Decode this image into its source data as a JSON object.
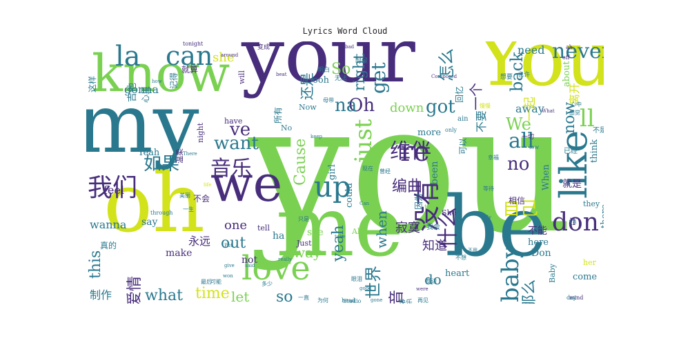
{
  "title": "Lyrics Word Cloud",
  "colors": {
    "dark_purple": "#472d7b",
    "teal": "#2a788e",
    "green": "#7ad151",
    "yellow": "#d2e21b",
    "blue": "#3b528b",
    "sea": "#22a884"
  },
  "words": [
    {
      "text": "you",
      "color": "#7ad151",
      "size": 260,
      "rotate": false
    },
    {
      "text": "your",
      "color": "#472d7b",
      "size": 110,
      "rotate": false
    },
    {
      "text": "my",
      "color": "#2a788e",
      "size": 118,
      "rotate": false
    },
    {
      "text": "You",
      "color": "#d2e21b",
      "size": 110,
      "rotate": false
    },
    {
      "text": "know",
      "color": "#7ad151",
      "size": 74,
      "rotate": false
    },
    {
      "text": "oh",
      "color": "#d2e21b",
      "size": 118,
      "rotate": false
    },
    {
      "text": "me",
      "color": "#7ad151",
      "size": 120,
      "rotate": false
    },
    {
      "text": "be",
      "color": "#2a788e",
      "size": 120,
      "rotate": false
    },
    {
      "text": "we",
      "color": "#472d7b",
      "size": 72,
      "rotate": false
    },
    {
      "text": "like",
      "color": "#2a788e",
      "size": 54,
      "rotate": true
    },
    {
      "text": "love",
      "color": "#7ad151",
      "size": 48,
      "rotate": false
    },
    {
      "text": "can",
      "color": "#2a788e",
      "size": 38,
      "rotate": false
    },
    {
      "text": "la",
      "color": "#2a788e",
      "size": 40,
      "rotate": false
    },
    {
      "text": "re",
      "color": "#472d7b",
      "size": 40,
      "rotate": false
    },
    {
      "text": "up",
      "color": "#2a788e",
      "size": 42,
      "rotate": false
    },
    {
      "text": "never",
      "color": "#2a788e",
      "size": 30,
      "rotate": false
    },
    {
      "text": "don",
      "color": "#472d7b",
      "size": 36,
      "rotate": false
    },
    {
      "text": "baby",
      "color": "#2a788e",
      "size": 34,
      "rotate": true
    },
    {
      "text": "just",
      "color": "#7ad151",
      "size": 34,
      "rotate": true
    },
    {
      "text": "all",
      "color": "#2a788e",
      "size": 30,
      "rotate": false
    },
    {
      "text": "ll",
      "color": "#7ad151",
      "size": 34,
      "rotate": false
    },
    {
      "text": "get",
      "color": "#2a788e",
      "size": 28,
      "rotate": true
    },
    {
      "text": "Oh",
      "color": "#472d7b",
      "size": 26,
      "rotate": false
    },
    {
      "text": "na",
      "color": "#2a788e",
      "size": 26,
      "rotate": false
    },
    {
      "text": "want",
      "color": "#2a788e",
      "size": 26,
      "rotate": false
    },
    {
      "text": "ve",
      "color": "#472d7b",
      "size": 26,
      "rotate": false
    },
    {
      "text": "got",
      "color": "#2a788e",
      "size": 26,
      "rotate": false
    },
    {
      "text": "no",
      "color": "#472d7b",
      "size": 26,
      "rotate": false
    },
    {
      "text": "We",
      "color": "#7ad151",
      "size": 24,
      "rotate": false
    },
    {
      "text": "back",
      "color": "#2a788e",
      "size": 24,
      "rotate": true
    },
    {
      "text": "now",
      "color": "#2a788e",
      "size": 22,
      "rotate": true
    },
    {
      "text": "Cause",
      "color": "#7ad151",
      "size": 22,
      "rotate": true
    },
    {
      "text": "right",
      "color": "#2a788e",
      "size": 22,
      "rotate": true
    },
    {
      "text": "yeah",
      "color": "#2a788e",
      "size": 22,
      "rotate": true
    },
    {
      "text": "when",
      "color": "#2a788e",
      "size": 20,
      "rotate": true
    },
    {
      "text": "So",
      "color": "#7ad151",
      "size": 22,
      "rotate": false
    },
    {
      "text": "this",
      "color": "#2a788e",
      "size": 22,
      "rotate": true
    },
    {
      "text": "what",
      "color": "#2a788e",
      "size": 22,
      "rotate": false
    },
    {
      "text": "time",
      "color": "#d2e21b",
      "size": 22,
      "rotate": false
    },
    {
      "text": "so",
      "color": "#2a788e",
      "size": 22,
      "rotate": false
    },
    {
      "text": "out",
      "color": "#2a788e",
      "size": 22,
      "rotate": false
    },
    {
      "text": "way",
      "color": "#7ad151",
      "size": 20,
      "rotate": false
    },
    {
      "text": "do",
      "color": "#2a788e",
      "size": 20,
      "rotate": false
    },
    {
      "text": "let",
      "color": "#7ad151",
      "size": 20,
      "rotate": false
    },
    {
      "text": "wanna",
      "color": "#2a788e",
      "size": 16,
      "rotate": false
    },
    {
      "text": "one",
      "color": "#472d7b",
      "size": 18,
      "rotate": false
    },
    {
      "text": "down",
      "color": "#7ad151",
      "size": 18,
      "rotate": false
    },
    {
      "text": "away",
      "color": "#2a788e",
      "size": 16,
      "rotate": false
    },
    {
      "text": "need",
      "color": "#2a788e",
      "size": 16,
      "rotate": false
    },
    {
      "text": "gonna",
      "color": "#2a788e",
      "size": 16,
      "rotate": false
    },
    {
      "text": "she",
      "color": "#d2e21b",
      "size": 18,
      "rotate": false
    },
    {
      "text": "feel",
      "color": "#472d7b",
      "size": 16,
      "rotate": false
    },
    {
      "text": "make",
      "color": "#472d7b",
      "size": 14,
      "rotate": false
    },
    {
      "text": "say",
      "color": "#2a788e",
      "size": 14,
      "rotate": false
    },
    {
      "text": "not",
      "color": "#472d7b",
      "size": 14,
      "rotate": false
    },
    {
      "text": "ha",
      "color": "#2a788e",
      "size": 14,
      "rotate": false
    },
    {
      "text": "see",
      "color": "#7ad151",
      "size": 14,
      "rotate": false
    },
    {
      "text": "been",
      "color": "#2a788e",
      "size": 14,
      "rotate": true
    },
    {
      "text": "more",
      "color": "#2a788e",
      "size": 13,
      "rotate": false
    },
    {
      "text": "girl",
      "color": "#2a788e",
      "size": 13,
      "rotate": true
    },
    {
      "text": "could",
      "color": "#2a788e",
      "size": 13,
      "rotate": true
    },
    {
      "text": "heart",
      "color": "#2a788e",
      "size": 13,
      "rotate": false
    },
    {
      "text": "here",
      "color": "#2a788e",
      "size": 13,
      "rotate": false
    },
    {
      "text": "come",
      "color": "#2a788e",
      "size": 13,
      "rotate": false
    },
    {
      "text": "if",
      "color": "#472d7b",
      "size": 14,
      "rotate": false
    },
    {
      "text": "Don",
      "color": "#2a788e",
      "size": 14,
      "rotate": false
    },
    {
      "text": "When",
      "color": "#2a788e",
      "size": 13,
      "rotate": true
    },
    {
      "text": "there",
      "color": "#2a788e",
      "size": 13,
      "rotate": true
    },
    {
      "text": "think",
      "color": "#2a788e",
      "size": 13,
      "rotate": true
    },
    {
      "text": "they",
      "color": "#2a788e",
      "size": 11,
      "rotate": false
    },
    {
      "text": "about",
      "color": "#7ad151",
      "size": 13,
      "rotate": true
    },
    {
      "text": "Baby",
      "color": "#2a788e",
      "size": 11,
      "rotate": true
    },
    {
      "text": "her",
      "color": "#d2e21b",
      "size": 11,
      "rotate": false
    },
    {
      "text": "ooh",
      "color": "#2a788e",
      "size": 13,
      "rotate": false
    },
    {
      "text": "Now",
      "color": "#2a788e",
      "size": 11,
      "rotate": false
    },
    {
      "text": "No",
      "color": "#2a788e",
      "size": 11,
      "rotate": false
    },
    {
      "text": "Yeah",
      "color": "#2a788e",
      "size": 13,
      "rotate": false
    },
    {
      "text": "have",
      "color": "#472d7b",
      "size": 11,
      "rotate": false
    },
    {
      "text": "night",
      "color": "#472d7b",
      "size": 11,
      "rotate": true
    },
    {
      "text": "will",
      "color": "#472d7b",
      "size": 11,
      "rotate": true
    },
    {
      "text": "tell",
      "color": "#472d7b",
      "size": 11,
      "rotate": false
    },
    {
      "text": "Just",
      "color": "#472d7b",
      "size": 11,
      "rotate": false
    },
    {
      "text": "All",
      "color": "#7ad151",
      "size": 11,
      "rotate": false
    },
    {
      "text": "too",
      "color": "#7ad151",
      "size": 11,
      "rotate": false
    },
    {
      "text": "She",
      "color": "#472d7b",
      "size": 11,
      "rotate": false
    },
    {
      "text": "ain",
      "color": "#2a788e",
      "size": 10,
      "rotate": false
    },
    {
      "text": "only",
      "color": "#2a788e",
      "size": 8,
      "rotate": false
    },
    {
      "text": "low",
      "color": "#2a788e",
      "size": 8,
      "rotate": false
    },
    {
      "text": "ya",
      "color": "#2a788e",
      "size": 9,
      "rotate": false
    },
    {
      "text": "ah",
      "color": "#472d7b",
      "size": 8,
      "rotate": false
    },
    {
      "text": "off",
      "color": "#472d7b",
      "size": 8,
      "rotate": false
    },
    {
      "text": "mind",
      "color": "#472d7b",
      "size": 8,
      "rotate": false
    },
    {
      "text": "day",
      "color": "#2a788e",
      "size": 8,
      "rotate": false
    },
    {
      "text": "There",
      "color": "#2a788e",
      "size": 7,
      "rotate": false
    },
    {
      "text": "tonight",
      "color": "#472d7b",
      "size": 8,
      "rotate": false
    },
    {
      "text": "Composed",
      "color": "#472d7b",
      "size": 7,
      "rotate": false
    },
    {
      "text": "bad",
      "color": "#472d7b",
      "size": 7,
      "rotate": false
    },
    {
      "text": "beat",
      "color": "#472d7b",
      "size": 7,
      "rotate": false
    },
    {
      "text": "keep",
      "color": "#2a788e",
      "size": 7,
      "rotate": false
    },
    {
      "text": "really",
      "color": "#2a788e",
      "size": 7,
      "rotate": false
    },
    {
      "text": "give",
      "color": "#2a788e",
      "size": 7,
      "rotate": false
    },
    {
      "text": "life",
      "color": "#d2e21b",
      "size": 7,
      "rotate": false
    },
    {
      "text": "through",
      "color": "#2a788e",
      "size": 8,
      "rotate": false
    },
    {
      "text": "around",
      "color": "#472d7b",
      "size": 7,
      "rotate": false
    },
    {
      "text": "how",
      "color": "#2a788e",
      "size": 7,
      "rotate": false
    },
    {
      "text": "Put",
      "color": "#2a788e",
      "size": 7,
      "rotate": false
    },
    {
      "text": "said",
      "color": "#2a788e",
      "size": 7,
      "rotate": false
    },
    {
      "text": "won",
      "color": "#2a788e",
      "size": 7,
      "rotate": false
    },
    {
      "text": "take",
      "color": "#2a788e",
      "size": 7,
      "rotate": false
    },
    {
      "text": "Can",
      "color": "#2a788e",
      "size": 7,
      "rotate": false
    },
    {
      "text": "My",
      "color": "#2a788e",
      "size": 7,
      "rotate": false
    },
    {
      "text": "Studio",
      "color": "#2a788e",
      "size": 8,
      "rotate": false
    },
    {
      "text": "head",
      "color": "#2a788e",
      "size": 8,
      "rotate": false
    },
    {
      "text": "gone",
      "color": "#2a788e",
      "size": 7,
      "rotate": false
    },
    {
      "text": "good",
      "color": "#2a788e",
      "size": 7,
      "rotate": false
    },
    {
      "text": "were",
      "color": "#472d7b",
      "size": 7,
      "rotate": false
    },
    {
      "text": "What",
      "color": "#472d7b",
      "size": 7,
      "rotate": false
    },
    {
      "text": "我们",
      "color": "#472d7b",
      "size": 36,
      "rotate": false
    },
    {
      "text": "音乐",
      "color": "#472d7b",
      "size": 30,
      "rotate": false
    },
    {
      "text": "如果",
      "color": "#2a788e",
      "size": 26,
      "rotate": false
    },
    {
      "text": "维伴",
      "color": "#472d7b",
      "size": 30,
      "rotate": false
    },
    {
      "text": "编曲",
      "color": "#472d7b",
      "size": 22,
      "rotate": false
    },
    {
      "text": "没有",
      "color": "#472d7b",
      "size": 38,
      "rotate": true
    },
    {
      "text": "什么",
      "color": "#472d7b",
      "size": 30,
      "rotate": true
    },
    {
      "text": "自己",
      "color": "#d2e21b",
      "size": 26,
      "rotate": false
    },
    {
      "text": "怎么",
      "color": "#2a788e",
      "size": 24,
      "rotate": true
    },
    {
      "text": "一个",
      "color": "#472d7b",
      "size": 20,
      "rotate": true
    },
    {
      "text": "一起",
      "color": "#d2e21b",
      "size": 18,
      "rotate": true
    },
    {
      "text": "世界",
      "color": "#2a788e",
      "size": 24,
      "rotate": true
    },
    {
      "text": "混音",
      "color": "#472d7b",
      "size": 22,
      "rotate": true
    },
    {
      "text": "那么",
      "color": "#2a788e",
      "size": 22,
      "rotate": true
    },
    {
      "text": "知道",
      "color": "#472d7b",
      "size": 18,
      "rotate": false
    },
    {
      "text": "寂寞",
      "color": "#472d7b",
      "size": 18,
      "rotate": false
    },
    {
      "text": "爱情",
      "color": "#472d7b",
      "size": 22,
      "rotate": true
    },
    {
      "text": "永远",
      "color": "#472d7b",
      "size": 16,
      "rotate": false
    },
    {
      "text": "制作",
      "color": "#2a788e",
      "size": 16,
      "rotate": false
    },
    {
      "text": "还是",
      "color": "#2a788e",
      "size": 20,
      "rotate": true
    },
    {
      "text": "不要",
      "color": "#2a788e",
      "size": 16,
      "rotate": true
    },
    {
      "text": "离开",
      "color": "#d2e21b",
      "size": 16,
      "rotate": true
    },
    {
      "text": "就是",
      "color": "#472d7b",
      "size": 14,
      "rotate": false
    },
    {
      "text": "不能",
      "color": "#472d7b",
      "size": 14,
      "rotate": false
    },
    {
      "text": "时间",
      "color": "#472d7b",
      "size": 14,
      "rotate": true
    },
    {
      "text": "相信",
      "color": "#472d7b",
      "size": 12,
      "rotate": false
    },
    {
      "text": "回忆",
      "color": "#2a788e",
      "size": 12,
      "rotate": true
    },
    {
      "text": "可以",
      "color": "#2a788e",
      "size": 12,
      "rotate": true
    },
    {
      "text": "因为",
      "color": "#2a788e",
      "size": 12,
      "rotate": true
    },
    {
      "text": "吉他",
      "color": "#2a788e",
      "size": 14,
      "rotate": true
    },
    {
      "text": "心里",
      "color": "#2a788e",
      "size": 12,
      "rotate": true
    },
    {
      "text": "记得",
      "color": "#2a788e",
      "size": 12,
      "rotate": true
    },
    {
      "text": "这样",
      "color": "#2a788e",
      "size": 12,
      "rotate": true
    },
    {
      "text": "就算",
      "color": "#472d7b",
      "size": 12,
      "rotate": false
    },
    {
      "text": "温柔",
      "color": "#472d7b",
      "size": 11,
      "rotate": true
    },
    {
      "text": "真的",
      "color": "#2a788e",
      "size": 12,
      "rotate": false
    },
    {
      "text": "不会",
      "color": "#472d7b",
      "size": 12,
      "rotate": false
    },
    {
      "text": "所有",
      "color": "#2a788e",
      "size": 12,
      "rotate": true
    },
    {
      "text": "快乐",
      "color": "#2a788e",
      "size": 10,
      "rotate": false
    },
    {
      "text": "我会",
      "color": "#2a788e",
      "size": 10,
      "rotate": false
    },
    {
      "text": "已经",
      "color": "#2a788e",
      "size": 10,
      "rotate": false
    },
    {
      "text": "不是",
      "color": "#2a788e",
      "size": 10,
      "rotate": false
    },
    {
      "text": "一切",
      "color": "#472d7b",
      "size": 9,
      "rotate": false
    },
    {
      "text": "变成",
      "color": "#472d7b",
      "size": 9,
      "rotate": false
    },
    {
      "text": "明白",
      "color": "#2a788e",
      "size": 9,
      "rotate": false
    },
    {
      "text": "无法",
      "color": "#2a788e",
      "size": 9,
      "rotate": false
    },
    {
      "text": "时候",
      "color": "#2a788e",
      "size": 9,
      "rotate": false
    },
    {
      "text": "想要",
      "color": "#2a788e",
      "size": 9,
      "rotate": false
    },
    {
      "text": "也许",
      "color": "#2a788e",
      "size": 9,
      "rotate": false
    },
    {
      "text": "感觉",
      "color": "#2a788e",
      "size": 8,
      "rotate": false
    },
    {
      "text": "心中",
      "color": "#2a788e",
      "size": 8,
      "rotate": false
    },
    {
      "text": "眼泪",
      "color": "#2a788e",
      "size": 8,
      "rotate": false
    },
    {
      "text": "身边",
      "color": "#2a788e",
      "size": 8,
      "rotate": false
    },
    {
      "text": "再见",
      "color": "#2a788e",
      "size": 8,
      "rotate": false
    },
    {
      "text": "一直",
      "color": "#2a788e",
      "size": 8,
      "rotate": false
    },
    {
      "text": "为何",
      "color": "#2a788e",
      "size": 8,
      "rotate": false
    },
    {
      "text": "不想",
      "color": "#2a788e",
      "size": 8,
      "rotate": false
    },
    {
      "text": "最后",
      "color": "#2a788e",
      "size": 8,
      "rotate": false
    },
    {
      "text": "可能",
      "color": "#2a788e",
      "size": 8,
      "rotate": false
    },
    {
      "text": "多少",
      "color": "#2a788e",
      "size": 8,
      "rotate": false
    },
    {
      "text": "只是",
      "color": "#2a788e",
      "size": 8,
      "rotate": false
    },
    {
      "text": "现在",
      "color": "#2a788e",
      "size": 8,
      "rotate": false
    },
    {
      "text": "曾经",
      "color": "#2a788e",
      "size": 8,
      "rotate": false
    },
    {
      "text": "母带",
      "color": "#2a788e",
      "size": 8,
      "rotate": false
    },
    {
      "text": "幸福",
      "color": "#2a788e",
      "size": 8,
      "rotate": false
    },
    {
      "text": "等待",
      "color": "#2a788e",
      "size": 8,
      "rotate": false
    },
    {
      "text": "一生",
      "color": "#2a788e",
      "size": 8,
      "rotate": false
    },
    {
      "text": "美丽",
      "color": "#2a788e",
      "size": 8,
      "rotate": false
    },
    {
      "text": "慢慢",
      "color": "#d2e21b",
      "size": 8,
      "rotate": false
    },
    {
      "text": "不用",
      "color": "#2a788e",
      "size": 7,
      "rotate": false
    }
  ]
}
